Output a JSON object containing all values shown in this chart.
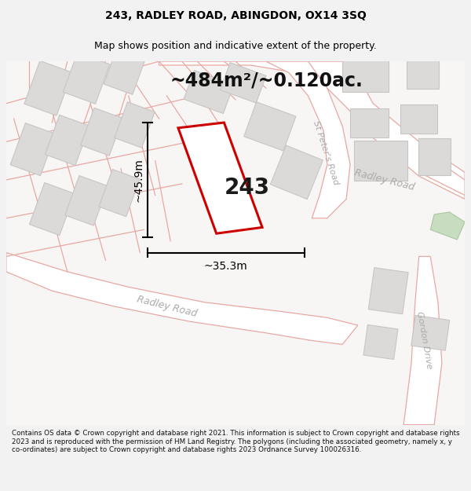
{
  "title": "243, RADLEY ROAD, ABINGDON, OX14 3SQ",
  "subtitle": "Map shows position and indicative extent of the property.",
  "area_text": "~484m²/~0.120ac.",
  "property_number": "243",
  "dim_vertical": "~45.9m",
  "dim_horizontal": "~35.3m",
  "footer_text": "Contains OS data © Crown copyright and database right 2021. This information is subject to Crown copyright and database rights 2023 and is reproduced with the permission of HM Land Registry. The polygons (including the associated geometry, namely x, y co-ordinates) are subject to Crown copyright and database rights 2023 Ordnance Survey 100026316.",
  "bg_color": "#f2f2f2",
  "map_bg": "#f7f6f4",
  "road_fill": "#ffffff",
  "road_stroke": "#e8a8a4",
  "road_stroke_lw": 0.9,
  "building_fill": "#dcdad8",
  "building_stroke": "#c8c6c4",
  "property_fill": "#ffffff",
  "property_stroke": "#cc0000",
  "property_lw": 2.2,
  "green_fill": "#c8dcc0",
  "green_stroke": "#a8c8a0",
  "road_label_color": "#aaaaaa",
  "dim_color": "#000000",
  "area_text_color": "#111111",
  "title_fontsize": 10,
  "subtitle_fontsize": 9,
  "area_fontsize": 17,
  "prop_num_fontsize": 20,
  "dim_fontsize": 10,
  "road_label_fontsize": 9,
  "footer_fontsize": 6.3
}
